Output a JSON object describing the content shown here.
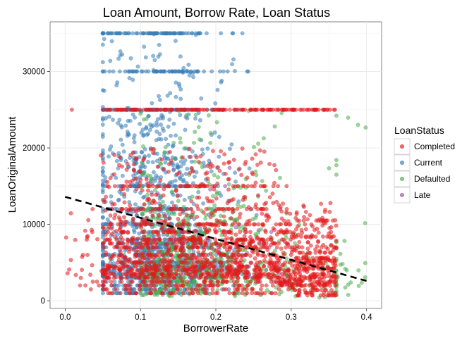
{
  "chart_data": {
    "type": "scatter",
    "title": "Loan Amount, Borrow Rate, Loan Status",
    "xlabel": "BorrowerRate",
    "ylabel": "LoanOriginalAmount",
    "xlim": [
      -0.02,
      0.42
    ],
    "ylim": [
      -1000,
      36500
    ],
    "x_ticks": [
      0.0,
      0.1,
      0.2,
      0.3,
      0.4
    ],
    "x_tick_labels": [
      "0.0",
      "0.1",
      "0.2",
      "0.3",
      "0.4"
    ],
    "y_ticks": [
      0,
      10000,
      20000,
      30000
    ],
    "y_tick_labels": [
      "0",
      "10000",
      "20000",
      "30000"
    ],
    "grid": true,
    "legend": {
      "title": "LoanStatus",
      "placement": "right",
      "entries": [
        "Completed",
        "Current",
        "Defaulted",
        "Late"
      ]
    },
    "series": [
      {
        "name": "Completed",
        "color": "#E41A1C"
      },
      {
        "name": "Current",
        "color": "#377EB8"
      },
      {
        "name": "Defaulted",
        "color": "#4DAF4A"
      },
      {
        "name": "Late",
        "color": "#984EA3"
      }
    ],
    "trend_line": {
      "style": "dashed",
      "color": "#000000",
      "x": [
        0.0,
        0.4
      ],
      "y": [
        13600,
        2600
      ]
    }
  }
}
